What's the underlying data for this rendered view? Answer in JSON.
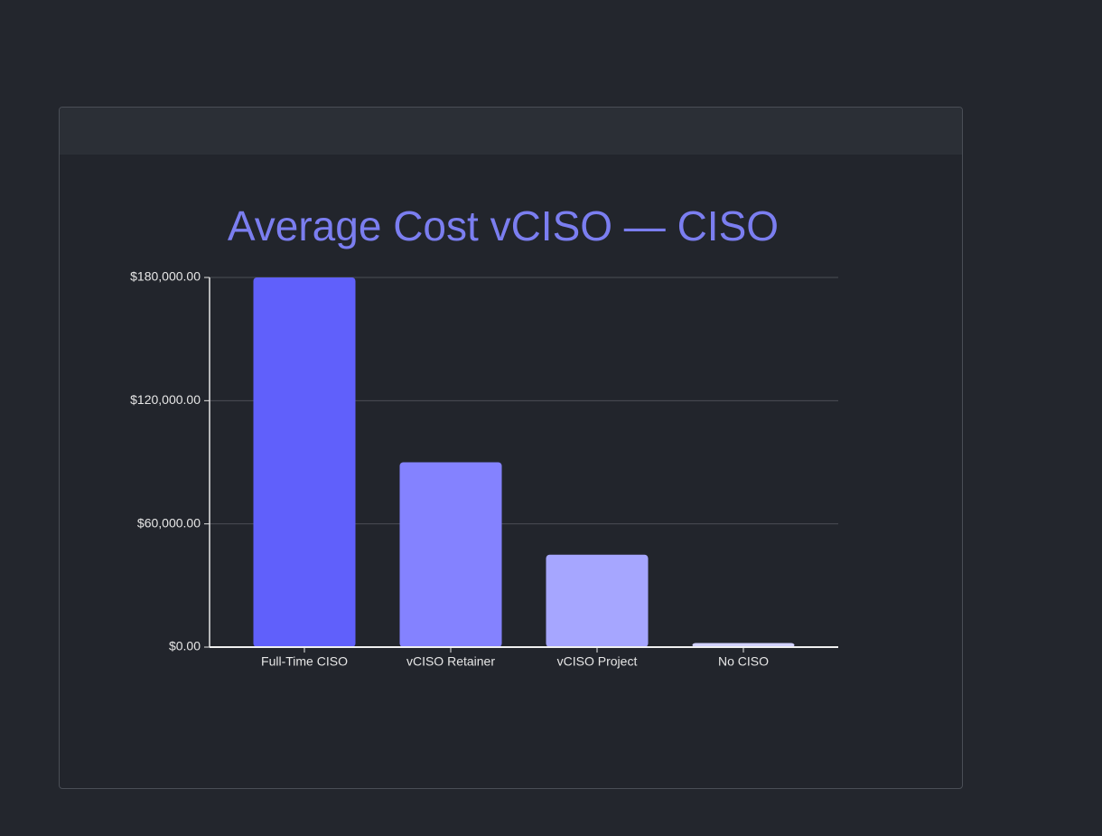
{
  "chart_data": {
    "type": "bar",
    "title": "Average Cost vCISO — CISO",
    "categories": [
      "Full-Time CISO",
      "vCISO Retainer",
      "vCISO Project",
      "No CISO"
    ],
    "values": [
      180000,
      90000,
      45000,
      2000
    ],
    "colors": [
      "#6060fb",
      "#8482ff",
      "#a6a6ff",
      "#d2d2ff"
    ],
    "ylim": [
      0,
      180000
    ],
    "yticks": [
      {
        "value": 0,
        "label": "$0.00"
      },
      {
        "value": 60000,
        "label": "$60,000.00"
      },
      {
        "value": 120000,
        "label": "$120,000.00"
      },
      {
        "value": 180000,
        "label": "$180,000.00"
      }
    ],
    "grid": true
  }
}
